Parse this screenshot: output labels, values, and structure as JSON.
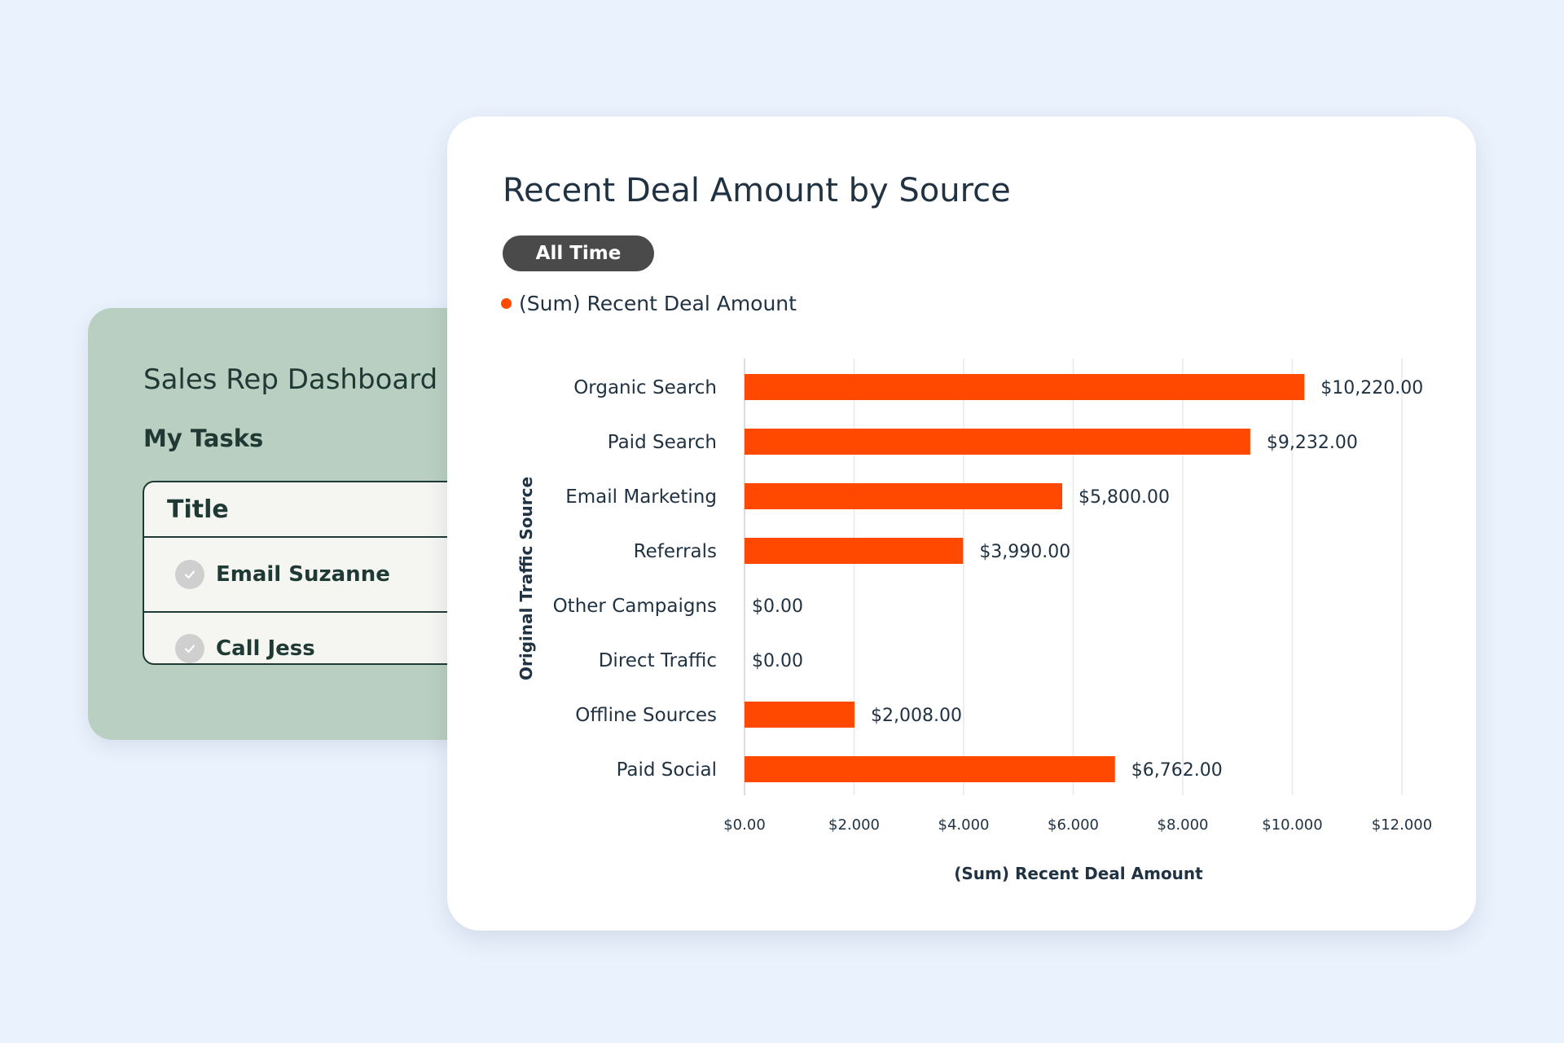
{
  "dashboard": {
    "title": "Sales Rep Dashboard",
    "tasks_heading": "My Tasks",
    "table_header": "Title",
    "tasks": [
      {
        "label": "Email Suzanne"
      },
      {
        "label": "Call Jess"
      }
    ]
  },
  "chart_panel": {
    "filter_label": "All Time"
  },
  "colors": {
    "bar": "#ff4800",
    "background": "#eaf2fd",
    "dashboard_card": "#b9cfc1",
    "pill": "#4a4a4a"
  },
  "chart_data": {
    "type": "bar",
    "orientation": "horizontal",
    "title": "Recent Deal Amount by Source",
    "xlabel": "(Sum) Recent Deal Amount",
    "ylabel": "Original Traffic Source",
    "legend": "top-left",
    "grid": true,
    "xlim": [
      0,
      12000
    ],
    "xticks": [
      0,
      2000,
      4000,
      6000,
      8000,
      10000,
      12000
    ],
    "xtick_labels": [
      "$0.00",
      "$2.000",
      "$4.000",
      "$6.000",
      "$8.000",
      "$10.000",
      "$12.000"
    ],
    "categories": [
      "Organic Search",
      "Paid Search",
      "Email Marketing",
      "Referrals",
      "Other Campaigns",
      "Direct Traffic",
      "Offline Sources",
      "Paid Social"
    ],
    "series": [
      {
        "name": "(Sum) Recent Deal Amount",
        "values": [
          10220,
          9232,
          5800,
          3990,
          0,
          0,
          2008,
          6762
        ],
        "value_labels": [
          "$10,220.00",
          "$9,232.00",
          "$5,800.00",
          "$3,990.00",
          "$0.00",
          "$0.00",
          "$2,008.00",
          "$6,762.00"
        ]
      }
    ]
  }
}
